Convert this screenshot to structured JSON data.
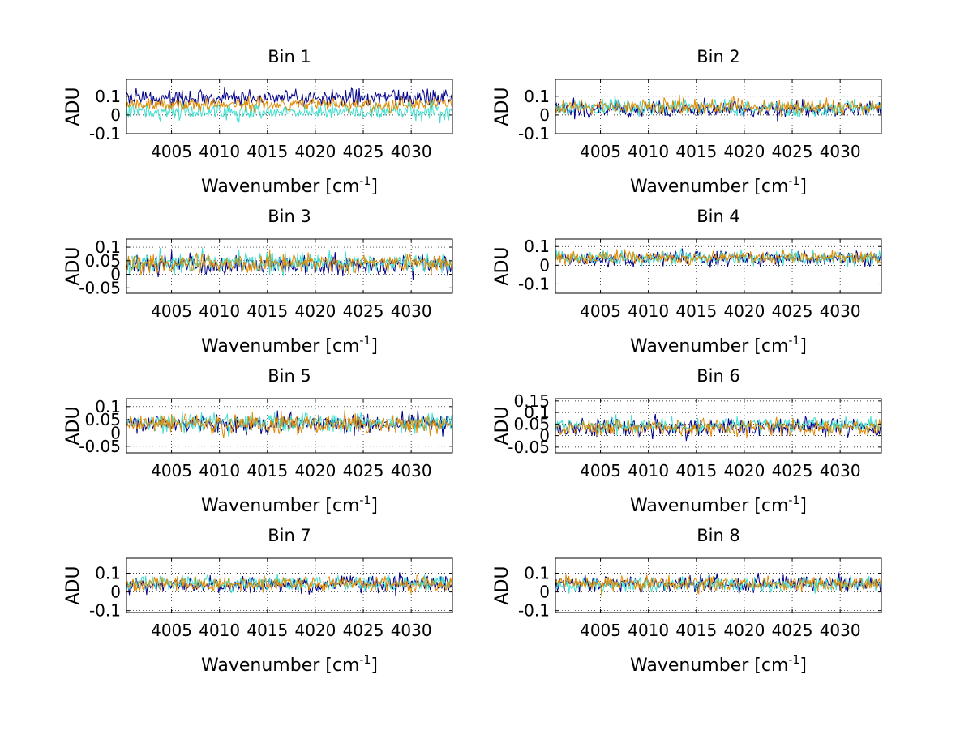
{
  "figure": {
    "background": "#ffffff"
  },
  "chart_data": [
    {
      "type": "line",
      "title": "Bin 1",
      "ylabel": "ADU",
      "xlabel": "Wavenumber [cm",
      "xlabel_sup": "-1",
      "xlabel_tail": "]",
      "xlim": [
        4000.3,
        4034.3
      ],
      "ylim": [
        -0.1,
        0.19
      ],
      "xticks": [
        4005,
        4010,
        4015,
        4020,
        4025,
        4030
      ],
      "yticks": [
        -0.1,
        0,
        0.1
      ],
      "ytick_labels": [
        "-0.1",
        "0",
        "0.1"
      ],
      "series": [
        {
          "name": "blue",
          "color": "#00008b",
          "mean": 0.09,
          "amp": 0.045,
          "seed": 11
        },
        {
          "name": "turquoise",
          "color": "#40e0d0",
          "mean": 0.02,
          "amp": 0.045,
          "seed": 12
        },
        {
          "name": "orange",
          "color": "#e08a00",
          "mean": 0.055,
          "amp": 0.035,
          "seed": 13
        }
      ]
    },
    {
      "type": "line",
      "title": "Bin 2",
      "ylabel": "ADU",
      "xlabel": "Wavenumber [cm",
      "xlabel_sup": "-1",
      "xlabel_tail": "]",
      "xlim": [
        4000.3,
        4034.3
      ],
      "ylim": [
        -0.1,
        0.19
      ],
      "xticks": [
        4005,
        4010,
        4015,
        4020,
        4025,
        4030
      ],
      "yticks": [
        -0.1,
        0,
        0.1
      ],
      "ytick_labels": [
        "-0.1",
        "0",
        "0.1"
      ],
      "series": [
        {
          "name": "blue",
          "color": "#00008b",
          "mean": 0.03,
          "amp": 0.045,
          "seed": 21
        },
        {
          "name": "turquoise",
          "color": "#40e0d0",
          "mean": 0.04,
          "amp": 0.045,
          "seed": 22
        },
        {
          "name": "orange",
          "color": "#e08a00",
          "mean": 0.045,
          "amp": 0.04,
          "seed": 23
        }
      ]
    },
    {
      "type": "line",
      "title": "Bin 3",
      "ylabel": "ADU",
      "xlabel": "Wavenumber [cm",
      "xlabel_sup": "-1",
      "xlabel_tail": "]",
      "xlim": [
        4000.3,
        4034.3
      ],
      "ylim": [
        -0.07,
        0.13
      ],
      "xticks": [
        4005,
        4010,
        4015,
        4020,
        4025,
        4030
      ],
      "yticks": [
        -0.05,
        0,
        0.05,
        0.1
      ],
      "ytick_labels": [
        "-0.05",
        "0",
        "0.05",
        "0.1"
      ],
      "series": [
        {
          "name": "blue",
          "color": "#00008b",
          "mean": 0.035,
          "amp": 0.035,
          "seed": 31
        },
        {
          "name": "turquoise",
          "color": "#40e0d0",
          "mean": 0.045,
          "amp": 0.035,
          "seed": 32
        },
        {
          "name": "orange",
          "color": "#e08a00",
          "mean": 0.04,
          "amp": 0.035,
          "seed": 33
        }
      ]
    },
    {
      "type": "line",
      "title": "Bin 4",
      "ylabel": "ADU",
      "xlabel": "Wavenumber [cm",
      "xlabel_sup": "-1",
      "xlabel_tail": "]",
      "xlim": [
        4000.3,
        4034.3
      ],
      "ylim": [
        -0.15,
        0.14
      ],
      "xticks": [
        4005,
        4010,
        4015,
        4020,
        4025,
        4030
      ],
      "yticks": [
        -0.1,
        0,
        0.1
      ],
      "ytick_labels": [
        "-0.1",
        "0",
        "0.1"
      ],
      "series": [
        {
          "name": "blue",
          "color": "#00008b",
          "mean": 0.035,
          "amp": 0.04,
          "seed": 41
        },
        {
          "name": "turquoise",
          "color": "#40e0d0",
          "mean": 0.04,
          "amp": 0.04,
          "seed": 42
        },
        {
          "name": "orange",
          "color": "#e08a00",
          "mean": 0.04,
          "amp": 0.035,
          "seed": 43
        }
      ]
    },
    {
      "type": "line",
      "title": "Bin 5",
      "ylabel": "ADU",
      "xlabel": "Wavenumber [cm",
      "xlabel_sup": "-1",
      "xlabel_tail": "]",
      "xlim": [
        4000.3,
        4034.3
      ],
      "ylim": [
        -0.075,
        0.13
      ],
      "xticks": [
        4005,
        4010,
        4015,
        4020,
        4025,
        4030
      ],
      "yticks": [
        -0.05,
        0,
        0.05,
        0.1
      ],
      "ytick_labels": [
        "-0.05",
        "0",
        "0.05",
        "0.1"
      ],
      "series": [
        {
          "name": "blue",
          "color": "#00008b",
          "mean": 0.035,
          "amp": 0.035,
          "seed": 51
        },
        {
          "name": "turquoise",
          "color": "#40e0d0",
          "mean": 0.04,
          "amp": 0.035,
          "seed": 52
        },
        {
          "name": "orange",
          "color": "#e08a00",
          "mean": 0.035,
          "amp": 0.035,
          "seed": 53
        }
      ]
    },
    {
      "type": "line",
      "title": "Bin 6",
      "ylabel": "ADU",
      "xlabel": "Wavenumber [cm",
      "xlabel_sup": "-1",
      "xlabel_tail": "]",
      "xlim": [
        4000.3,
        4034.3
      ],
      "ylim": [
        -0.075,
        0.16
      ],
      "xticks": [
        4005,
        4010,
        4015,
        4020,
        4025,
        4030
      ],
      "yticks": [
        -0.05,
        0,
        0.05,
        0.1,
        0.15
      ],
      "ytick_labels": [
        "-0.05",
        "0",
        "0.05",
        "0.1",
        "0.15"
      ],
      "series": [
        {
          "name": "blue",
          "color": "#00008b",
          "mean": 0.035,
          "amp": 0.04,
          "seed": 61
        },
        {
          "name": "turquoise",
          "color": "#40e0d0",
          "mean": 0.045,
          "amp": 0.035,
          "seed": 62
        },
        {
          "name": "orange",
          "color": "#e08a00",
          "mean": 0.035,
          "amp": 0.035,
          "seed": 63
        }
      ]
    },
    {
      "type": "line",
      "title": "Bin 7",
      "ylabel": "ADU",
      "xlabel": "Wavenumber [cm",
      "xlabel_sup": "-1",
      "xlabel_tail": "]",
      "xlim": [
        4000.3,
        4034.3
      ],
      "ylim": [
        -0.11,
        0.18
      ],
      "xticks": [
        4005,
        4010,
        4015,
        4020,
        4025,
        4030
      ],
      "yticks": [
        -0.1,
        0,
        0.1
      ],
      "ytick_labels": [
        "-0.1",
        "0",
        "0.1"
      ],
      "series": [
        {
          "name": "blue",
          "color": "#00008b",
          "mean": 0.04,
          "amp": 0.045,
          "seed": 71
        },
        {
          "name": "turquoise",
          "color": "#40e0d0",
          "mean": 0.045,
          "amp": 0.04,
          "seed": 72
        },
        {
          "name": "orange",
          "color": "#e08a00",
          "mean": 0.045,
          "amp": 0.04,
          "seed": 73
        }
      ]
    },
    {
      "type": "line",
      "title": "Bin 8",
      "ylabel": "ADU",
      "xlabel": "Wavenumber [cm",
      "xlabel_sup": "-1",
      "xlabel_tail": "]",
      "xlim": [
        4000.3,
        4034.3
      ],
      "ylim": [
        -0.11,
        0.18
      ],
      "xticks": [
        4005,
        4010,
        4015,
        4020,
        4025,
        4030
      ],
      "yticks": [
        -0.1,
        0,
        0.1
      ],
      "ytick_labels": [
        "-0.1",
        "0",
        "0.1"
      ],
      "series": [
        {
          "name": "blue",
          "color": "#00008b",
          "mean": 0.045,
          "amp": 0.045,
          "seed": 81
        },
        {
          "name": "turquoise",
          "color": "#40e0d0",
          "mean": 0.04,
          "amp": 0.04,
          "seed": 82
        },
        {
          "name": "orange",
          "color": "#e08a00",
          "mean": 0.045,
          "amp": 0.04,
          "seed": 83
        }
      ]
    }
  ]
}
